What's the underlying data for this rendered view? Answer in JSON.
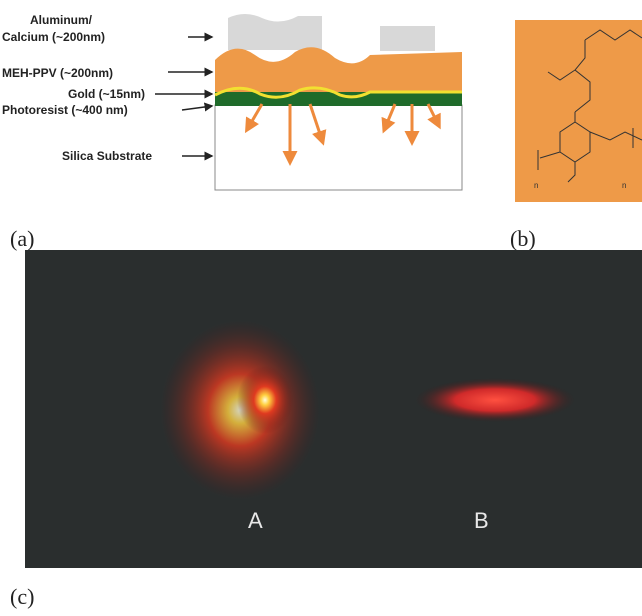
{
  "panel_a": {
    "label": "(a)",
    "layers": [
      "Aluminum/",
      "Calcium (~200nm)",
      "MEH-PPV (~200nm)",
      "Gold (~15nm)",
      "Photoresist (~400 nm)",
      "Silica Substrate"
    ]
  },
  "panel_b": {
    "label": "(b)",
    "subscripts": [
      "n",
      "n"
    ]
  },
  "panel_c": {
    "label": "(c)",
    "spots": [
      "A",
      "B"
    ]
  }
}
